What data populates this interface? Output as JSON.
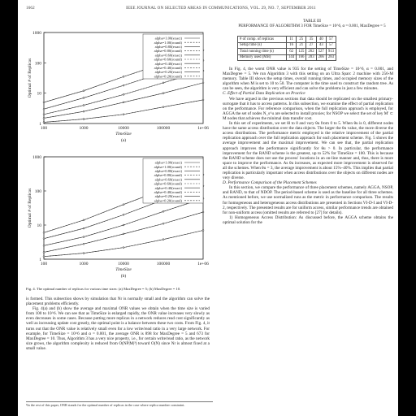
{
  "header": {
    "page_number": "1662",
    "journal": "IEEE JOURNAL ON SELECTED AREAS IN COMMUNICATIONS, VOL. 29, NO. 7, SEPTEMBER 2011"
  },
  "figure_a": {
    "ylabel": "Optimal # of Replicas",
    "xlabel": "TimeSize",
    "panel": "(a)",
    "chart_data": {
      "type": "line",
      "x": [
        "100",
        "1000",
        "10000",
        "100000",
        "1e+06"
      ],
      "xscale": "log",
      "yscale": "log",
      "yticks": [
        "1",
        "10",
        "100",
        "1000"
      ],
      "legend_position": "top-right",
      "series": [
        {
          "name": "alpha=1.00(exact)",
          "values": [
            5,
            12,
            35,
            95,
            260
          ]
        },
        {
          "name": "alpha=1.00(round)",
          "values": [
            5,
            12,
            35,
            95,
            260
          ]
        },
        {
          "name": "alpha=0.80(exact)",
          "values": [
            3,
            7,
            18,
            48,
            120
          ]
        },
        {
          "name": "alpha=0.80(round)",
          "values": [
            3,
            7,
            18,
            48,
            120
          ]
        },
        {
          "name": "alpha=0.60(exact)",
          "values": [
            2,
            4,
            9,
            22,
            55
          ]
        },
        {
          "name": "alpha=0.60(round)",
          "values": [
            2,
            4,
            9,
            22,
            55
          ]
        },
        {
          "name": "alpha=0.40(exact)",
          "values": [
            1.5,
            2.5,
            5,
            10,
            22
          ]
        },
        {
          "name": "alpha=0.40(round)",
          "values": [
            1.5,
            2.5,
            5,
            10,
            22
          ]
        },
        {
          "name": "alpha=0.20(exact)",
          "values": [
            1.1,
            1.4,
            2,
            3.5,
            6
          ]
        },
        {
          "name": "alpha=0.20(round)",
          "values": [
            1.1,
            1.4,
            2,
            3.5,
            6
          ]
        }
      ]
    }
  },
  "figure_b": {
    "ylabel": "Optimal # of Replicas",
    "xlabel": "TimeSize",
    "panel": "(b)",
    "chart_data": {
      "type": "line",
      "x": [
        "100",
        "1000",
        "10000",
        "100000",
        "1e+06"
      ],
      "xscale": "log",
      "yscale": "log",
      "yticks": [
        "1",
        "10",
        "100",
        "1000"
      ],
      "legend_position": "top-right",
      "series": [
        {
          "name": "alpha=1.00(exact)",
          "values": [
            6,
            14,
            40,
            110,
            300
          ]
        },
        {
          "name": "alpha=1.00(round)",
          "values": [
            6,
            14,
            40,
            110,
            300
          ]
        },
        {
          "name": "alpha=0.80(exact)",
          "values": [
            4,
            8,
            20,
            55,
            140
          ]
        },
        {
          "name": "alpha=0.80(round)",
          "values": [
            4,
            8,
            20,
            55,
            140
          ]
        },
        {
          "name": "alpha=0.60(exact)",
          "values": [
            2.5,
            4.5,
            10,
            25,
            60
          ]
        },
        {
          "name": "alpha=0.60(round)",
          "values": [
            2.5,
            4.5,
            10,
            25,
            60
          ]
        },
        {
          "name": "alpha=0.40(exact)",
          "values": [
            1.6,
            2.8,
            5.5,
            11,
            24
          ]
        },
        {
          "name": "alpha=0.40(round)",
          "values": [
            1.6,
            2.8,
            5.5,
            11,
            24
          ]
        },
        {
          "name": "alpha=0.20(exact)",
          "values": [
            1.2,
            1.5,
            2.2,
            3.8,
            7
          ]
        },
        {
          "name": "alpha=0.20(round)",
          "values": [
            1.2,
            1.5,
            2.2,
            3.8,
            7
          ]
        }
      ]
    }
  },
  "fig_caption": "Fig. 4. The optimal number of replicas for various time sizes: (a) MaxDegree = 5; (b) MaxDegree = 10.",
  "left_col": [
    "is formed. This subsection shows by simulation that Nr is normally small and the algorithm can solve the placement problems efficiently.",
    "Fig. 4(a) and (b) show the average and maximal ONR values we obtain when the time size is varied from 100 to 10^6. We can see that as TimeSize is enlarged rapidly, the ONR value increases very slowly as even decreases in some cases. Because putting more replicas in a network reduces read cost significantly as well as increasing update cost greatly, the optimal point is a balance between these two costs. From Fig. 4, it turns out that the ONR value is relatively small even for a low write/read ratio in a very large network. For example, for TimeSize = 10^6 and α = 0.001, the average ONR is 898 for MaxDegree = 5 and 673 for MaxDegree = 10. Thus, Algorithm 3 has a very nice property, i.e., for certain write/read ratio, as the network size grows, the algorithm complexity is reduced from O(NP|M|³) toward O(N) since Nr is almost fixed at a small value."
  ],
  "footnote": "¹In the rest of this paper, ONR stands for the optimal number of replicas in the case where replica number constraint.",
  "table": {
    "title_line1": "TABLE III",
    "title_line2": "PERFORMANCE OF ALGORITHM 3 FOR TimeSize = 10^6, α = 0.001, MaxDegree = 5",
    "rows": [
      {
        "label": "# of comp. of replicas",
        "cells": [
          "11",
          "25",
          "35",
          "40",
          "57"
        ]
      },
      {
        "label": "Setup time (s)",
        "cells": [
          "16",
          "21",
          "27",
          "43",
          "57"
        ]
      },
      {
        "label": "Total running time (s)",
        "cells": [
          "62",
          "125",
          "262",
          "527",
          "913"
        ]
      },
      {
        "label": "Memory used (MB)",
        "cells": [
          "144",
          "166",
          "203",
          "266",
          "283"
        ]
      }
    ]
  },
  "right_col": {
    "p1": "In Fig. 4, the worst ONR value is 935 for the setting of TimeSize = 10^6, α = 0.001, and MaxDegree = 5. We run Algorithm 3 with this setting on an Ultra Sparc 2 machine with 256-M memory. Table III shows the setup times, overall running times, and occupied memory sizes of the algorithm when M is set to 10 to 50. The computer is the time used to construct the random tree. As can be seen, the algorithm is very efficient and can solve the problems in just a few minutes.",
    "sec_c": "C. Effect of Partial Data Replication on Practice",
    "p2": "We have argued in the previous sections that data should be replicated on the smallest primary-surrogate that it has to access patterns. In this subsection, we examine the effect of partial replication on the performance. For reference comparison, when the full replication approach is employed, for AGGA the set of nodes N_s^u are selected to install proxies; for NSOP we select the set of key M' ⊂ M nodes that achieves the minimal data transfer cost.",
    "p3": "In this set of experiments, we set θl to 8 and vary θu from 0 to 5. When θu is 0, different nodes have the same access distribution over the data objects. The larger the θu value, the more diverse the access distributions. The performance metric employed is the relative improvement of the partial replication approach over the full replication approach for each placement scheme. Fig. 5 shows the average improvement and the maximal improvement. We can see that, the partial replication approach improves the performance significantly for θu > 0. In particular, the performance improvement for the RAND scheme is the greatest, up to 52% for TimeSize = 100. This is because the RAND scheme does not use the process' locations in an on-line manner and, thus, there is more space to improve the performance. As θu increases, as expected more improvement is observed for all the schemes. When θu = 3, the average improvement is about 15%–40%. This implies that partial replication is particularly important when access distributions over the objects on different nodes are very diverse.",
    "sec_d": "D. Performance Comparison of the Placement Schemes",
    "p4": "In this section, we compare the performance of three placement schemes, namely AGGA, NSOP, and RAND, to that of NDOP. The period-based scheme is used as the baseline for all three schemes. As mentioned before, we use normalized runs as the metric in performance comparison. The results for homogeneous and heterogeneous access distributions are presented in Sections VI-D-I and VI-D-2, respectively. The presented results are for uniform access, similar performance trends are obtained for non-uniform access (omitted results are referred to [27] for details).",
    "p5": "1) Homogeneous Access Distribution: As discussed before, the AGGA scheme obtains the optimal solution for the"
  }
}
